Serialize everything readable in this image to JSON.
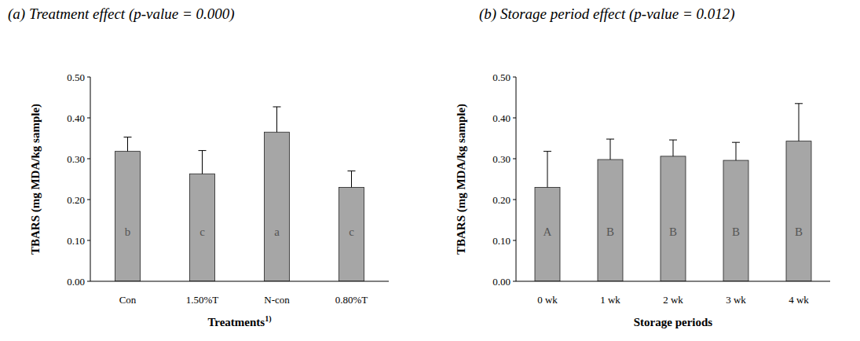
{
  "chart_data": [
    {
      "type": "bar",
      "title": "(a) Treatment effect (p-value = 0.000)",
      "x_label": "Treatments",
      "x_label_note": "1)",
      "y_label": "TBARS (mg MDA/kg sample)",
      "categories": [
        "Con",
        "1.50%T",
        "N-con",
        "0.80%T"
      ],
      "values": [
        0.318,
        0.263,
        0.365,
        0.23
      ],
      "errors": [
        0.035,
        0.057,
        0.062,
        0.04
      ],
      "letters": [
        "b",
        "c",
        "a",
        "c"
      ],
      "color": "#a6a6a6",
      "grid": false,
      "ylim": [
        0,
        0.5
      ],
      "yticks": [
        {
          "value": 0,
          "label": "0.00"
        },
        {
          "value": 0.1,
          "label": "0.10"
        },
        {
          "value": 0.2,
          "label": "0.20"
        },
        {
          "value": 0.3,
          "label": "0.30"
        },
        {
          "value": 0.4,
          "label": "0.40"
        },
        {
          "value": 0.5,
          "label": "0.50"
        }
      ]
    },
    {
      "type": "bar",
      "title": "(b) Storage period effect (p-value = 0.012)",
      "x_label": "Storage periods",
      "y_label": "TBARS (mg MDA/kg sample)",
      "categories": [
        "0 wk",
        "1 wk",
        "2 wk",
        "3 wk",
        "4 wk"
      ],
      "values": [
        0.23,
        0.298,
        0.306,
        0.296,
        0.343
      ],
      "errors": [
        0.088,
        0.05,
        0.04,
        0.044,
        0.092
      ],
      "letters": [
        "A",
        "B",
        "B",
        "B",
        "B"
      ],
      "color": "#a6a6a6",
      "grid": false,
      "ylim": [
        0,
        0.5
      ],
      "yticks": [
        {
          "value": 0,
          "label": "0.00"
        },
        {
          "value": 0.1,
          "label": "0.10"
        },
        {
          "value": 0.2,
          "label": "0.20"
        },
        {
          "value": 0.3,
          "label": "0.30"
        },
        {
          "value": 0.4,
          "label": "0.40"
        },
        {
          "value": 0.5,
          "label": "0.50"
        }
      ]
    }
  ]
}
